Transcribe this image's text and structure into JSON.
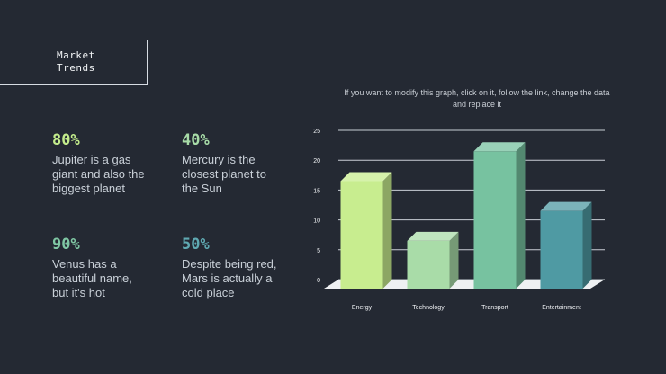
{
  "title": "Market\nTrends",
  "stats": [
    {
      "value": "80%",
      "color": "#c3ec8c",
      "text": "Jupiter is a gas\ngiant and also the\nbiggest planet"
    },
    {
      "value": "40%",
      "color": "#a7dba7",
      "text": "Mercury is the\nclosest planet to\nthe Sun"
    },
    {
      "value": "90%",
      "color": "#7fc7a4",
      "text": "Venus has a\nbeautiful name,\nbut it's hot"
    },
    {
      "value": "50%",
      "color": "#5fa9b2",
      "text": "Despite being red,\nMars is actually a\ncold place"
    }
  ],
  "note": "If you want to modify this graph, click on it, follow the link, change the data and replace it",
  "chart_data": {
    "type": "bar",
    "categories": [
      "Energy",
      "Technology",
      "Transport",
      "Entertainment"
    ],
    "values": [
      18,
      8,
      23,
      13
    ],
    "colors": [
      "#c8ed8f",
      "#a9dca8",
      "#77c2a0",
      "#4f9aa3"
    ],
    "yticks": [
      0,
      5,
      10,
      15,
      20,
      25
    ],
    "ylim": [
      0,
      25
    ],
    "grid": true,
    "xlabel": "",
    "ylabel": ""
  }
}
